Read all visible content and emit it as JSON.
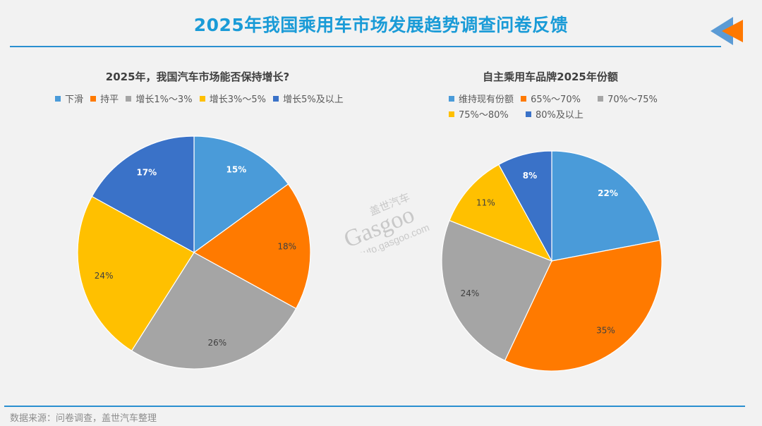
{
  "header": {
    "title": "2025年我国乘用车市场发展趋势调查问卷反馈",
    "icon": "double-arrow-left-icon",
    "icon_colors": [
      "#5b9bd5",
      "#ff7800"
    ]
  },
  "watermark": {
    "brand_cn": "盖世汽车",
    "brand_en": "Gasgoo",
    "url": "auto.gasgoo.com"
  },
  "footer": {
    "source": "数据来源：问卷调查，盖世汽车整理"
  },
  "colors": {
    "accent": "#1a9bd7",
    "rule": "#2a8fd0",
    "background": "#f2f2f2"
  },
  "chart_data": [
    {
      "type": "pie",
      "title": "2025年，我国汽车市场能否保持增长?",
      "categories": [
        "下滑",
        "持平",
        "增长1%～3%",
        "增长3%～5%",
        "增长5%及以上"
      ],
      "values": [
        15,
        18,
        26,
        24,
        17
      ],
      "labels": [
        "15%",
        "18%",
        "26%",
        "24%",
        "17%"
      ],
      "colors": [
        "#4a9bd9",
        "#ff7a00",
        "#a5a5a5",
        "#ffc000",
        "#3a72c8"
      ],
      "label_colors": [
        "#ffffff",
        "#404040",
        "#404040",
        "#404040",
        "#ffffff"
      ],
      "label_bold": [
        true,
        false,
        false,
        false,
        true
      ],
      "start_angle": "12 o'clock, clockwise",
      "legend_position": "top"
    },
    {
      "type": "pie",
      "title": "自主乘用车品牌2025年份额",
      "categories": [
        "维持现有份额",
        "65%～70%",
        "70%～75%",
        "75%～80%",
        "80%及以上"
      ],
      "values": [
        22,
        35,
        24,
        11,
        8
      ],
      "labels": [
        "22%",
        "35%",
        "24%",
        "11%",
        "8%"
      ],
      "colors": [
        "#4a9bd9",
        "#ff7a00",
        "#a5a5a5",
        "#ffc000",
        "#3a72c8"
      ],
      "label_colors": [
        "#ffffff",
        "#404040",
        "#404040",
        "#404040",
        "#ffffff"
      ],
      "label_bold": [
        true,
        false,
        false,
        false,
        true
      ],
      "start_angle": "12 o'clock, clockwise",
      "legend_position": "top"
    }
  ]
}
